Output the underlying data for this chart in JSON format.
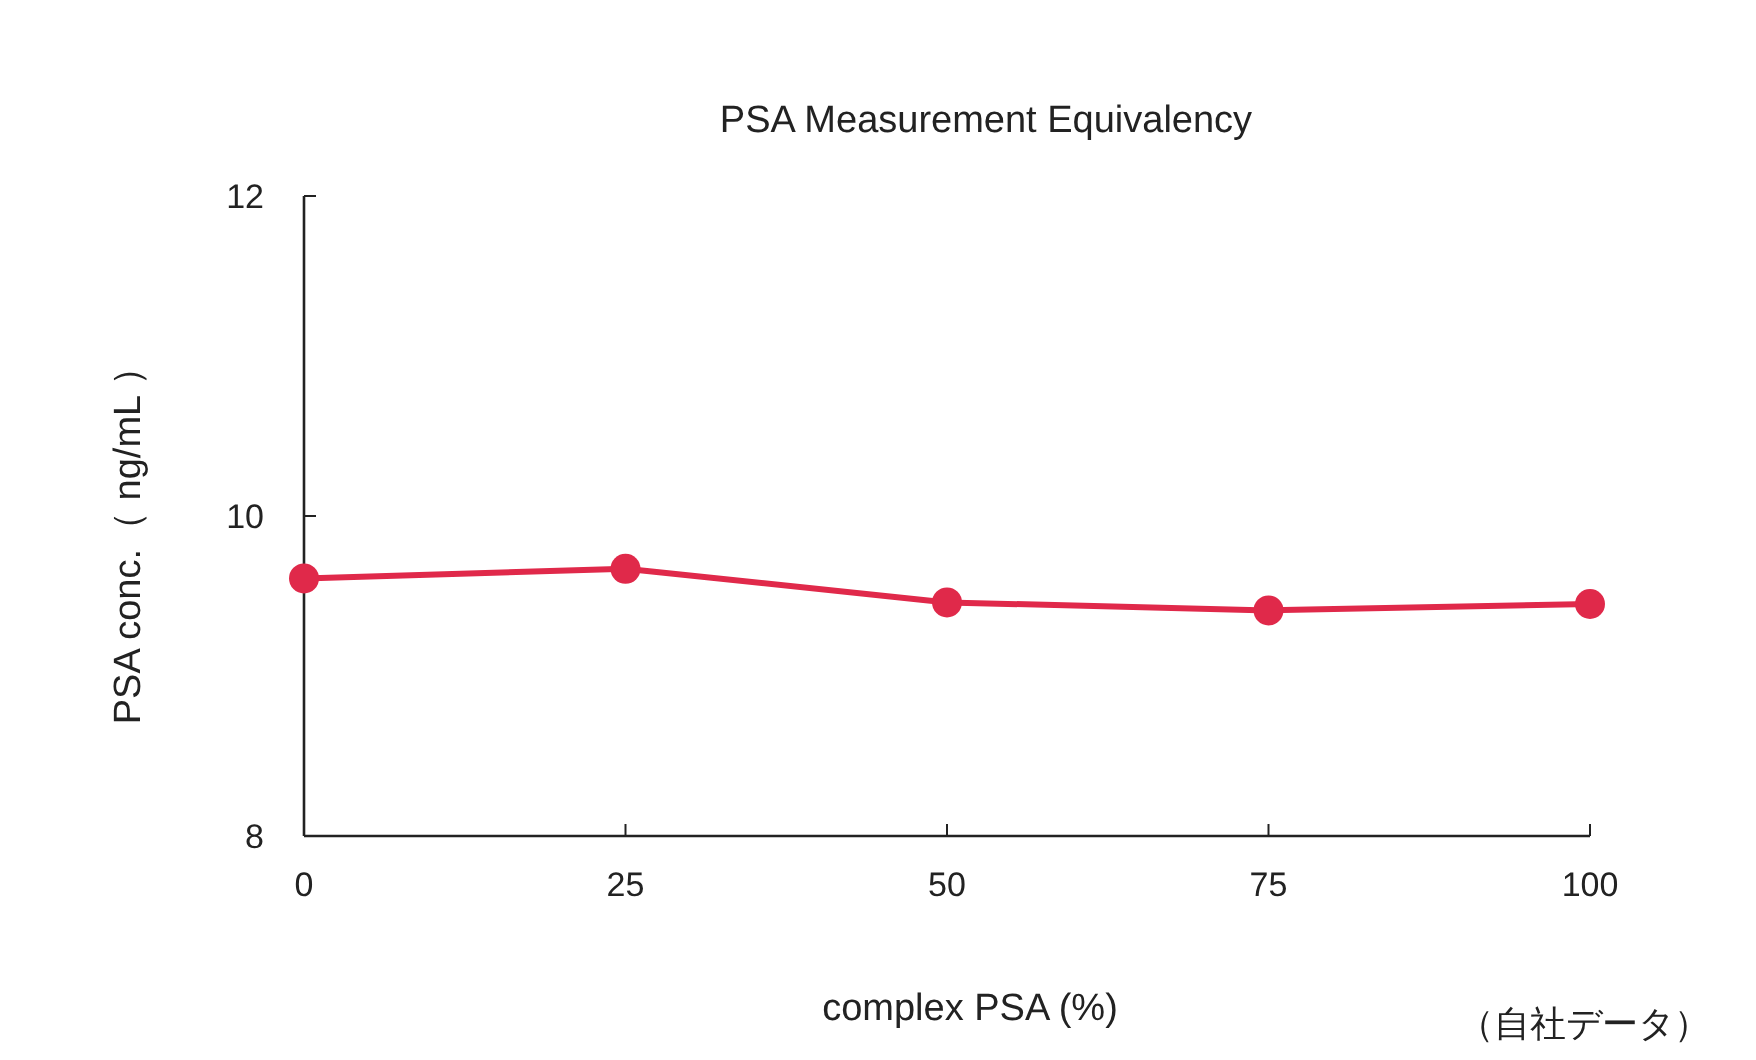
{
  "chart_data": {
    "type": "line",
    "title": "PSA Measurement Equivalency",
    "xlabel": "complex PSA  (%)",
    "ylabel": "PSA conc.（ ng/mL ）",
    "annotations": [
      "（自社データ）"
    ],
    "x": [
      0,
      25,
      50,
      75,
      100
    ],
    "series": [
      {
        "color": "#e0294a",
        "values": [
          9.61,
          9.67,
          9.46,
          9.41,
          9.45
        ]
      }
    ],
    "xlim": [
      0,
      100
    ],
    "ylim": [
      8,
      12
    ],
    "xticks": [
      0,
      25,
      50,
      75,
      100
    ],
    "yticks": [
      8,
      10,
      12
    ],
    "marker": "circle"
  }
}
